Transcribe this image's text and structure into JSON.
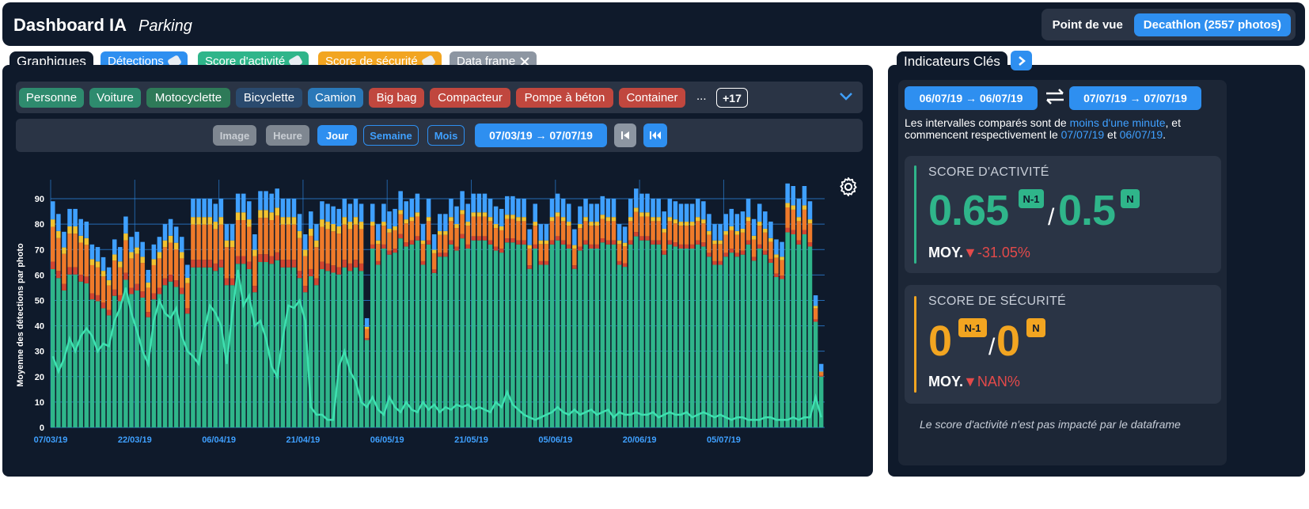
{
  "header": {
    "title": "Dashboard IA",
    "subtitle": "Parking",
    "pov_label": "Point de vue",
    "pov_value": "Decathlon (2557 photos)"
  },
  "tabs": {
    "main": "Graphiques",
    "detections": "Détections",
    "activity": "Score d'activité",
    "safety": "Score de sécurité",
    "dataframe": "Data frame"
  },
  "filters": {
    "chips": [
      {
        "label": "Personne",
        "color": "#2e8b6e"
      },
      {
        "label": "Voiture",
        "color": "#2e8b6e"
      },
      {
        "label": "Motocyclette",
        "color": "#2e7a58"
      },
      {
        "label": "Bicyclette",
        "color": "#2a4a6e"
      },
      {
        "label": "Camion",
        "color": "#2a78b8"
      },
      {
        "label": "Big bag",
        "color": "#c0473e"
      },
      {
        "label": "Compacteur",
        "color": "#c0473e"
      },
      {
        "label": "Pompe à béton",
        "color": "#c0473e"
      },
      {
        "label": "Container",
        "color": "#c0473e"
      }
    ],
    "more": "...",
    "count": "+17"
  },
  "time": {
    "image": "Image",
    "hour": "Heure",
    "day": "Jour",
    "week": "Semaine",
    "month": "Mois",
    "range": "07/03/19 → 07/07/19"
  },
  "chart_data": {
    "type": "bar",
    "stacked": true,
    "ylabel": "Moyenne des détections par photo",
    "ylim": [
      0,
      95
    ],
    "yticks": [
      0,
      10,
      20,
      30,
      40,
      50,
      60,
      70,
      80,
      90
    ],
    "xticks": [
      "07/03/19",
      "22/03/19",
      "06/04/19",
      "21/04/19",
      "06/05/19",
      "21/05/19",
      "05/06/19",
      "20/06/19",
      "05/07/19"
    ],
    "series_colors": {
      "green": "#2fb58a",
      "orange": "#ef7a2a",
      "red": "#d2452f",
      "yellow": "#f2c230",
      "blue": "#3fa0ff",
      "line": "#3ee0b0"
    },
    "totals": [
      89,
      84,
      77,
      86,
      86,
      82,
      81,
      72,
      71,
      67,
      63,
      74,
      71,
      83,
      75,
      77,
      73,
      62,
      72,
      75,
      80,
      82,
      79,
      75,
      64,
      90,
      90,
      90,
      90,
      88,
      90,
      80,
      80,
      92,
      92,
      89,
      76,
      93,
      93,
      92,
      94,
      90,
      90,
      90,
      84,
      76,
      85,
      80,
      89,
      88,
      87,
      86,
      90,
      88,
      90,
      88,
      43,
      88,
      80,
      88,
      85,
      86,
      93,
      89,
      90,
      92,
      80,
      90,
      76,
      84,
      84,
      90,
      87,
      93,
      88,
      92,
      92,
      92,
      90,
      87,
      86,
      91,
      91,
      90,
      90,
      78,
      88,
      80,
      80,
      90,
      92,
      90,
      88,
      78,
      87,
      90,
      88,
      88,
      91,
      90,
      90,
      80,
      79,
      90,
      94,
      92,
      92,
      90,
      90,
      85,
      90,
      89,
      88,
      88,
      88,
      90,
      89,
      84,
      80,
      80,
      84,
      86,
      84,
      85,
      90,
      82,
      88,
      85,
      81,
      74,
      73,
      96,
      95,
      90,
      95,
      89,
      52,
      25
    ],
    "line": [
      28,
      22,
      27,
      35,
      30,
      36,
      39,
      36,
      30,
      33,
      32,
      42,
      47,
      55,
      45,
      38,
      30,
      25,
      42,
      50,
      45,
      43,
      47,
      36,
      30,
      28,
      25,
      38,
      48,
      45,
      40,
      25,
      45,
      62,
      48,
      52,
      40,
      42,
      35,
      24,
      20,
      35,
      48,
      47,
      50,
      42,
      8,
      5,
      5,
      3,
      3,
      24,
      30,
      22,
      18,
      10,
      8,
      12,
      7,
      5,
      12,
      8,
      6,
      10,
      7,
      6,
      10,
      7,
      9,
      6,
      8,
      7,
      9,
      8,
      9,
      7,
      8,
      7,
      6,
      10,
      8,
      14,
      9,
      7,
      5,
      4,
      3,
      4,
      5,
      6,
      8,
      6,
      5,
      7,
      5,
      6,
      7,
      5,
      6,
      7,
      4,
      6,
      5,
      5,
      6,
      5,
      5,
      6,
      4,
      5,
      6,
      5,
      5,
      6,
      4,
      5,
      6,
      5,
      4,
      5,
      4,
      3,
      4,
      4,
      3,
      3,
      3,
      4,
      4,
      3,
      3,
      3,
      4,
      3,
      4,
      4,
      12,
      4
    ]
  },
  "kpi": {
    "title": "Indicateurs Clés",
    "range_a": "06/07/19 → 06/07/19",
    "range_b": "07/07/19 → 07/07/19",
    "note": {
      "p1": "Les intervalles comparés sont de ",
      "hl1": "moins d'une minute",
      "p2": ", et commencent respectivement le ",
      "hl2": "07/07/19",
      "p3": " et ",
      "hl3": "06/07/19",
      "p4": "."
    },
    "activity": {
      "title": "SCORE D'ACTIVITÉ",
      "prev": "0.65",
      "prev_badge": "N-1",
      "slash": "/",
      "curr": "0.5",
      "curr_badge": "N",
      "moy": "MOY.",
      "delta": "▼-31.05%",
      "color": "#2fb58a"
    },
    "safety": {
      "title": "SCORE DE SÉCURITÉ",
      "prev": "0",
      "prev_badge": "N-1",
      "slash": "/",
      "curr": "0",
      "curr_badge": "N",
      "moy": "MOY.",
      "delta": "▼NAN%",
      "color": "#f2a521"
    },
    "footnote": "Le score d'activité n'est pas impacté par le dataframe"
  }
}
